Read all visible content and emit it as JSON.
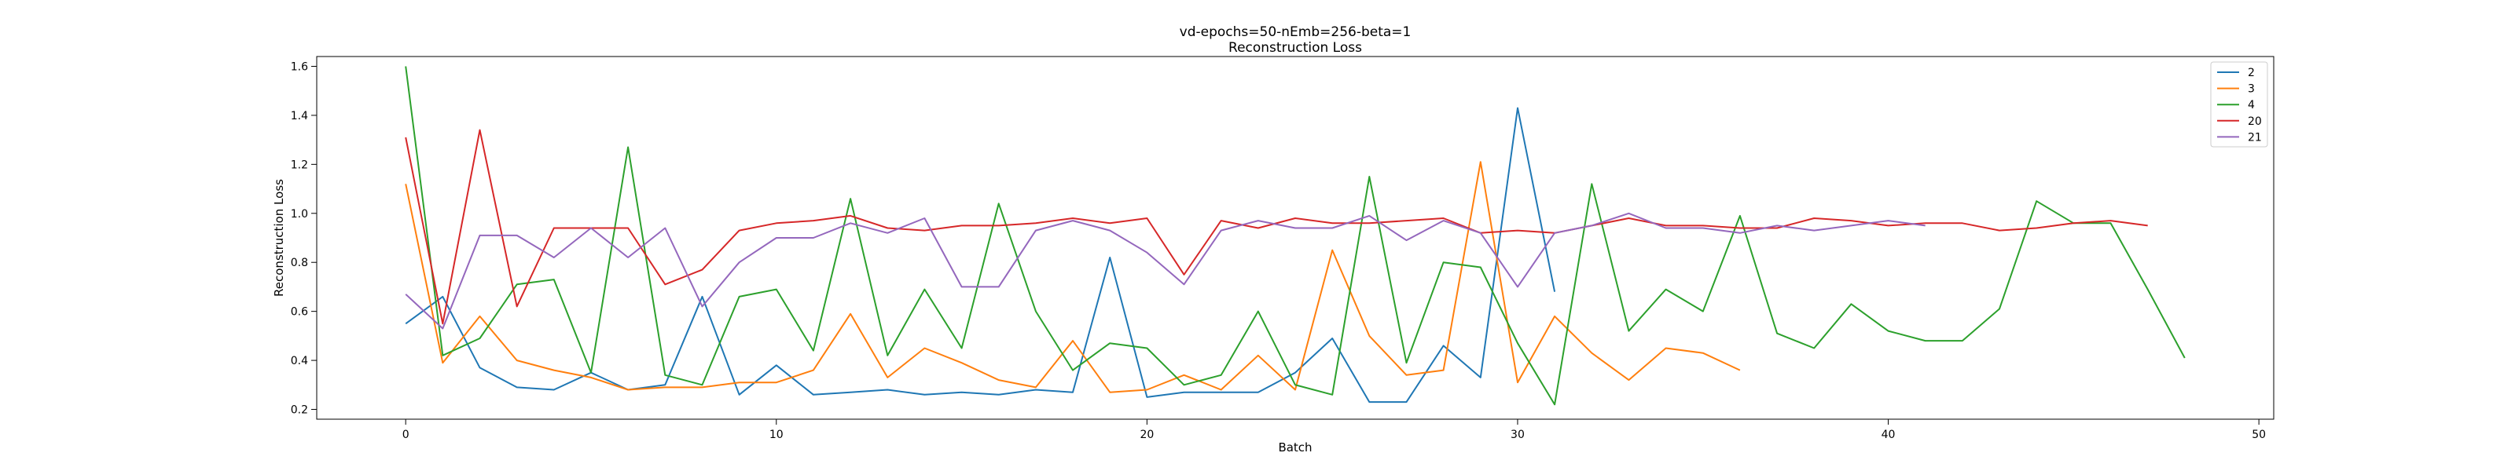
{
  "chart_data": {
    "type": "line",
    "title": "vd-epochs=50-nEmb=256-beta=1",
    "subtitle": "Reconstruction Loss",
    "xlabel": "Batch",
    "ylabel": "Reconstruction Loss",
    "xlim": [
      -2.4,
      50.4
    ],
    "ylim": [
      0.16,
      1.64
    ],
    "xticks": [
      0,
      10,
      20,
      30,
      40,
      50
    ],
    "yticks": [
      0.2,
      0.4,
      0.6,
      0.8,
      1.0,
      1.2,
      1.4,
      1.6
    ],
    "ytick_labels": [
      "0.2",
      "0.4",
      "0.6",
      "0.8",
      "1.0",
      "1.2",
      "1.4",
      "1.6"
    ],
    "grid": false,
    "legend_position": "top-right",
    "series": [
      {
        "name": "2",
        "color": "#1f77b4",
        "values": [
          0.55,
          0.66,
          0.37,
          0.29,
          0.28,
          0.35,
          0.28,
          0.3,
          0.66,
          0.26,
          0.38,
          0.26,
          0.27,
          0.28,
          0.26,
          0.27,
          0.26,
          0.28,
          0.27,
          0.82,
          0.25,
          0.27,
          0.27,
          0.27,
          0.35,
          0.49,
          0.23,
          0.23,
          0.46,
          0.33,
          1.43,
          0.68
        ]
      },
      {
        "name": "3",
        "color": "#ff7f0e",
        "values": [
          1.12,
          0.39,
          0.58,
          0.4,
          0.36,
          0.33,
          0.28,
          0.29,
          0.29,
          0.31,
          0.31,
          0.36,
          0.59,
          0.33,
          0.45,
          0.39,
          0.32,
          0.29,
          0.48,
          0.27,
          0.28,
          0.34,
          0.28,
          0.42,
          0.28,
          0.85,
          0.5,
          0.34,
          0.36,
          1.21,
          0.31,
          0.58,
          0.43,
          0.32,
          0.45,
          0.43,
          0.36
        ]
      },
      {
        "name": "4",
        "color": "#2ca02c",
        "values": [
          1.6,
          0.42,
          0.49,
          0.71,
          0.73,
          0.35,
          1.27,
          0.34,
          0.3,
          0.66,
          0.69,
          0.44,
          1.06,
          0.42,
          0.69,
          0.45,
          1.04,
          0.6,
          0.36,
          0.47,
          0.45,
          0.3,
          0.34,
          0.6,
          0.3,
          0.26,
          1.15,
          0.39,
          0.8,
          0.78,
          0.47,
          0.22,
          1.12,
          0.52,
          0.69,
          0.6,
          0.99,
          0.51,
          0.45,
          0.63,
          0.52,
          0.48,
          0.48,
          0.61,
          1.05,
          0.96,
          0.96,
          0.69,
          0.41
        ]
      },
      {
        "name": "20",
        "color": "#d62728",
        "values": [
          1.31,
          0.55,
          1.34,
          0.62,
          0.94,
          0.94,
          0.94,
          0.71,
          0.77,
          0.93,
          0.96,
          0.97,
          0.99,
          0.94,
          0.93,
          0.95,
          0.95,
          0.96,
          0.98,
          0.96,
          0.98,
          0.75,
          0.97,
          0.94,
          0.98,
          0.96,
          0.96,
          0.97,
          0.98,
          0.92,
          0.93,
          0.92,
          0.95,
          0.98,
          0.95,
          0.95,
          0.94,
          0.94,
          0.98,
          0.97,
          0.95,
          0.96,
          0.96,
          0.93,
          0.94,
          0.96,
          0.97,
          0.95
        ]
      },
      {
        "name": "21",
        "color": "#9467bd",
        "values": [
          0.67,
          0.53,
          0.91,
          0.91,
          0.82,
          0.94,
          0.82,
          0.94,
          0.62,
          0.8,
          0.9,
          0.9,
          0.96,
          0.92,
          0.98,
          0.7,
          0.7,
          0.93,
          0.97,
          0.93,
          0.84,
          0.71,
          0.93,
          0.97,
          0.94,
          0.94,
          0.99,
          0.89,
          0.97,
          0.92,
          0.7,
          0.92,
          0.95,
          1.0,
          0.94,
          0.94,
          0.92,
          0.95,
          0.93,
          0.95,
          0.97,
          0.95
        ]
      }
    ]
  }
}
